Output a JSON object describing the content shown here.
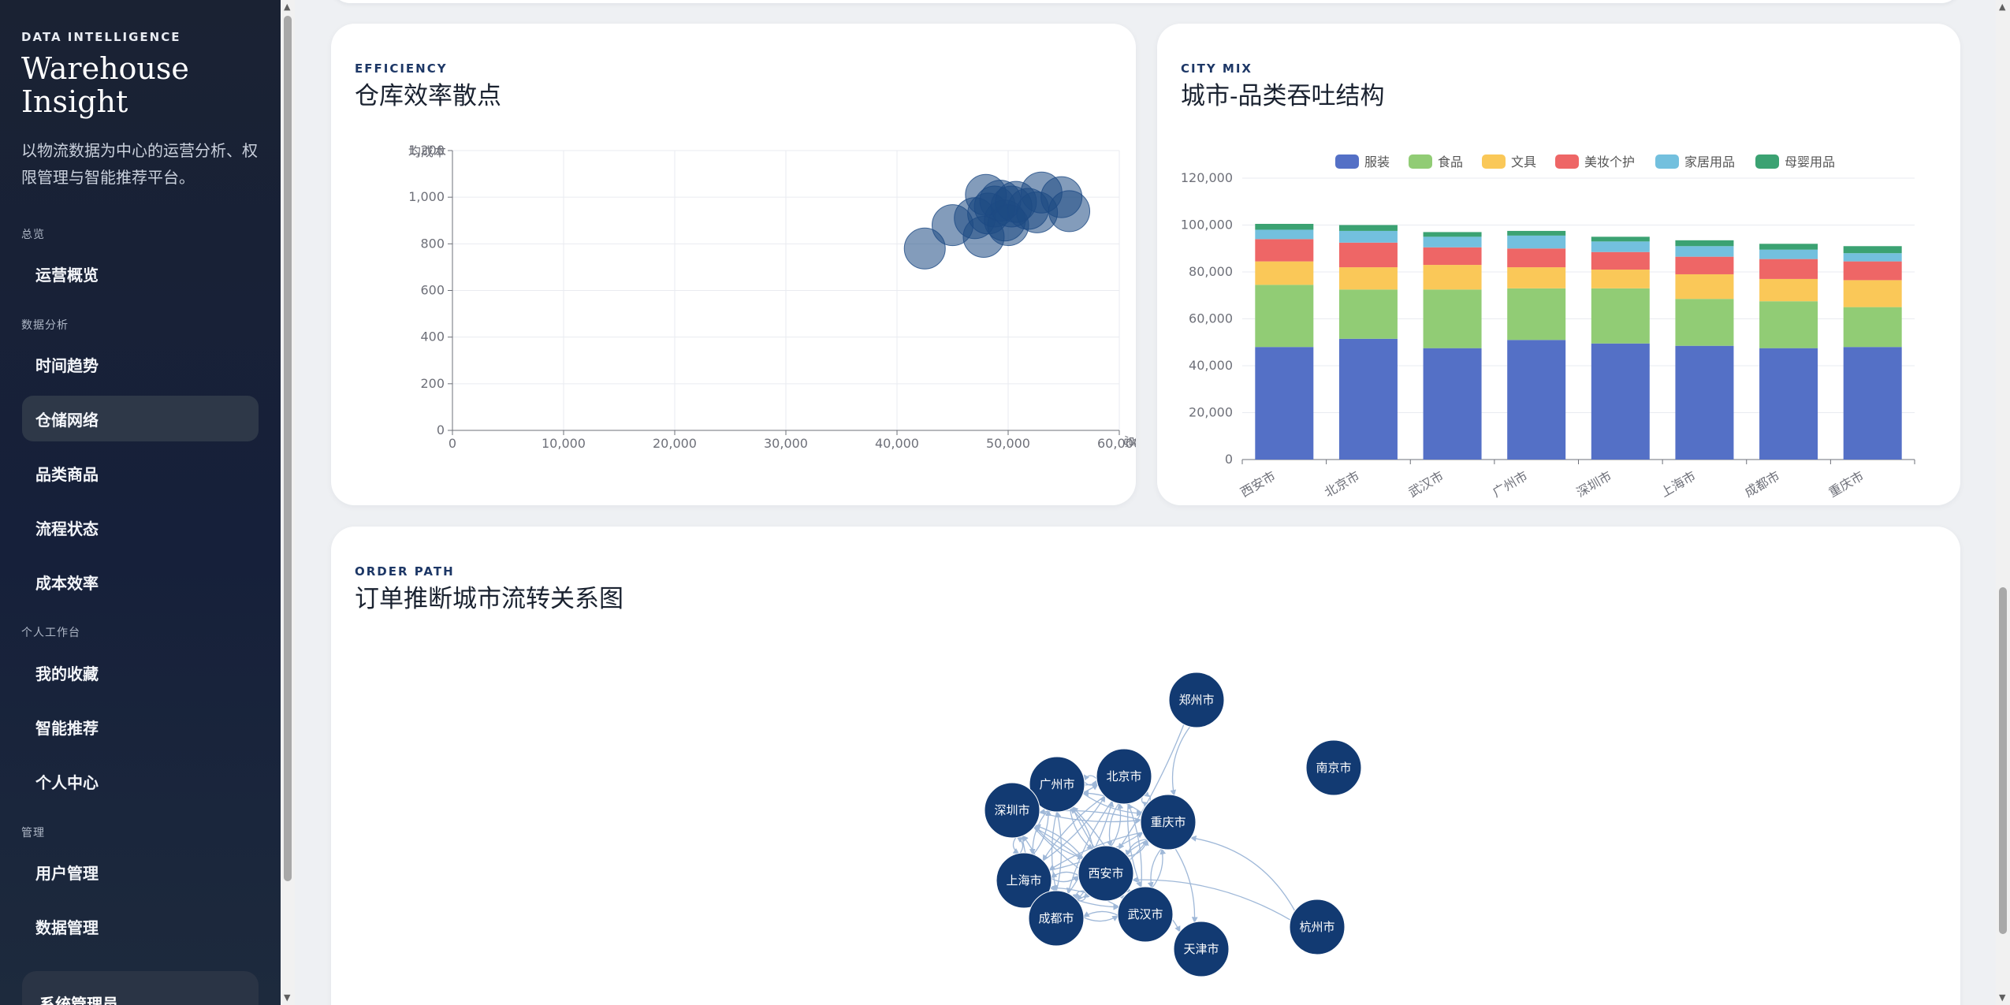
{
  "sidebar": {
    "eyebrow": "DATA INTELLIGENCE",
    "title": "Warehouse Insight",
    "description": "以物流数据为中心的运营分析、权限管理与智能推荐平台。",
    "sections": {
      "overview": "总览",
      "analysis": "数据分析",
      "workspace": "个人工作台",
      "manage": "管理"
    },
    "items": {
      "overview": "运营概览",
      "trend": "时间趋势",
      "network": "仓储网络",
      "category": "品类商品",
      "flow": "流程状态",
      "cost": "成本效率",
      "favorites": "我的收藏",
      "recommend": "智能推荐",
      "profile": "个人中心",
      "users": "用户管理",
      "data": "数据管理"
    },
    "active_item": "仓储网络",
    "admin_label": "系统管理员"
  },
  "cards": {
    "efficiency": {
      "eyebrow": "EFFICIENCY",
      "title": "仓库效率散点"
    },
    "city_mix": {
      "eyebrow": "CITY MIX",
      "title": "城市-品类吞吐结构"
    },
    "order_path": {
      "eyebrow": "ORDER PATH",
      "title": "订单推断城市流转关系图"
    }
  },
  "colors": {
    "scatter": "#1d4a84",
    "node": "#123a72",
    "edge": "#9fb8d8"
  },
  "chart_data": [
    {
      "type": "scatter",
      "title": "仓库效率散点",
      "xlabel": "总",
      "ylabel": "均成本",
      "xlim": [
        0,
        60000
      ],
      "ylim": [
        0,
        1200
      ],
      "x_ticks": [
        "0",
        "10,000",
        "20,000",
        "30,000",
        "40,000",
        "50,000",
        "60,000"
      ],
      "y_ticks": [
        "0",
        "200",
        "400",
        "600",
        "800",
        "1,000",
        "1,200"
      ],
      "grid": true,
      "points": [
        {
          "x": 42500,
          "y": 780
        },
        {
          "x": 45000,
          "y": 880
        },
        {
          "x": 47000,
          "y": 910
        },
        {
          "x": 47800,
          "y": 830
        },
        {
          "x": 48000,
          "y": 1010
        },
        {
          "x": 48200,
          "y": 930
        },
        {
          "x": 48800,
          "y": 960
        },
        {
          "x": 49300,
          "y": 985
        },
        {
          "x": 49700,
          "y": 900
        },
        {
          "x": 50000,
          "y": 880
        },
        {
          "x": 50300,
          "y": 960
        },
        {
          "x": 50700,
          "y": 980
        },
        {
          "x": 51800,
          "y": 950
        },
        {
          "x": 52600,
          "y": 935
        },
        {
          "x": 53000,
          "y": 1020
        },
        {
          "x": 54800,
          "y": 1000
        },
        {
          "x": 55500,
          "y": 940
        }
      ]
    },
    {
      "type": "bar",
      "stacked": true,
      "title": "城市-品类吞吐结构",
      "categories": [
        "西安市",
        "北京市",
        "武汉市",
        "广州市",
        "深圳市",
        "上海市",
        "成都市",
        "重庆市"
      ],
      "ylim": [
        0,
        120000
      ],
      "y_ticks": [
        "0",
        "20,000",
        "40,000",
        "60,000",
        "80,000",
        "100,000",
        "120,000"
      ],
      "legend_position": "top",
      "series": [
        {
          "name": "服装",
          "color": "#5470c6",
          "values": [
            48000,
            51500,
            47500,
            51000,
            49500,
            48500,
            47500,
            48000
          ]
        },
        {
          "name": "食品",
          "color": "#91cc75",
          "values": [
            26500,
            21000,
            25000,
            22000,
            23500,
            20000,
            20000,
            17000
          ]
        },
        {
          "name": "文具",
          "color": "#fac858",
          "values": [
            10000,
            9500,
            10500,
            9000,
            8000,
            10500,
            9500,
            11500
          ]
        },
        {
          "name": "美妆个护",
          "color": "#ee6666",
          "values": [
            9500,
            10500,
            7500,
            8000,
            7500,
            7500,
            8500,
            8000
          ]
        },
        {
          "name": "家居用品",
          "color": "#73c0de",
          "values": [
            4000,
            5000,
            4500,
            5500,
            4500,
            4500,
            4000,
            3500
          ]
        },
        {
          "name": "母婴用品",
          "color": "#3ba272",
          "values": [
            2500,
            2500,
            2000,
            2000,
            2000,
            2500,
            2500,
            3000
          ]
        }
      ]
    },
    {
      "type": "graph",
      "title": "订单推断城市流转关系图",
      "nodes": [
        "郑州市",
        "南京市",
        "广州市",
        "北京市",
        "深圳市",
        "重庆市",
        "西安市",
        "上海市",
        "武汉市",
        "成都市",
        "天津市",
        "杭州市"
      ]
    }
  ]
}
